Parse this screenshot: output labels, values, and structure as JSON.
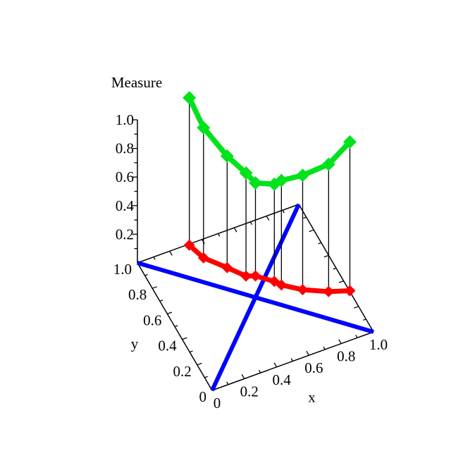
{
  "figure": {
    "background": "#ffffff",
    "description": "3D line plot of a dependence measure evaluated at points along the anti-diagonal of the unit square, with upper (green) and lower (red) measure curves joined by vertical drop lines, and blue diagonal reference lines on the base plane"
  },
  "chart_data": {
    "type": "line",
    "subtype": "3d-line-plot",
    "title": "",
    "z_axis": {
      "label": "Measure",
      "tick_labels": [
        "0.2",
        "0.4",
        "0.6",
        "0.8",
        "1.0"
      ],
      "tick_values": [
        0.2,
        0.4,
        0.6,
        0.8,
        1.0
      ],
      "range_shown": [
        0,
        1
      ],
      "minor_tick_step": 0.1
    },
    "x_axis": {
      "label": "x",
      "tick_labels": [
        "0",
        "0.2",
        "0.4",
        "0.6",
        "0.8",
        "1.0"
      ],
      "tick_values": [
        0,
        0.2,
        0.4,
        0.6,
        0.8,
        1.0
      ],
      "range": [
        0,
        1
      ],
      "minor_tick_step": 0.1
    },
    "y_axis": {
      "label": "y",
      "tick_labels": [
        "0",
        "0.2",
        "0.4",
        "0.6",
        "0.8",
        "1.0"
      ],
      "tick_values": [
        0,
        0.2,
        0.4,
        0.6,
        0.8,
        1.0
      ],
      "range": [
        0,
        1
      ],
      "minor_tick_step": 0.1
    },
    "grid": false,
    "legend": "none",
    "colors": {
      "series_upper": "#00E21C",
      "series_lower": "#FF0000",
      "reference_lines": "#0000FF",
      "axes": "#000000",
      "drop_lines": "#000000"
    },
    "series": [
      {
        "name": "upper-measure-curve",
        "color_key": "series_upper",
        "marker": "diamond",
        "points": [
          {
            "x": 0.22,
            "y": 0.78,
            "z": 1.26
          },
          {
            "x": 0.28,
            "y": 0.72,
            "z": 1.08
          },
          {
            "x": 0.38,
            "y": 0.62,
            "z": 0.93
          },
          {
            "x": 0.46,
            "y": 0.54,
            "z": 0.85
          },
          {
            "x": 0.5,
            "y": 0.5,
            "z": 0.8
          },
          {
            "x": 0.58,
            "y": 0.42,
            "z": 0.83
          },
          {
            "x": 0.61,
            "y": 0.39,
            "z": 0.87
          },
          {
            "x": 0.7,
            "y": 0.3,
            "z": 0.95
          },
          {
            "x": 0.81,
            "y": 0.19,
            "z": 1.08
          },
          {
            "x": 0.9,
            "y": 0.1,
            "z": 1.28
          }
        ]
      },
      {
        "name": "lower-measure-curve",
        "color_key": "series_lower",
        "marker": "diamond",
        "points": [
          {
            "x": 0.22,
            "y": 0.78,
            "z": 0.23
          },
          {
            "x": 0.28,
            "y": 0.72,
            "z": 0.17
          },
          {
            "x": 0.38,
            "y": 0.62,
            "z": 0.15
          },
          {
            "x": 0.46,
            "y": 0.54,
            "z": 0.13
          },
          {
            "x": 0.5,
            "y": 0.5,
            "z": 0.15
          },
          {
            "x": 0.58,
            "y": 0.42,
            "z": 0.15
          },
          {
            "x": 0.61,
            "y": 0.39,
            "z": 0.14
          },
          {
            "x": 0.7,
            "y": 0.3,
            "z": 0.15
          },
          {
            "x": 0.81,
            "y": 0.19,
            "z": 0.19
          },
          {
            "x": 0.9,
            "y": 0.1,
            "z": 0.24
          }
        ]
      }
    ],
    "drop_lines": {
      "enabled": true,
      "between": [
        "upper-measure-curve",
        "lower-measure-curve"
      ]
    },
    "reference_lines": [
      {
        "name": "base-diagonal-00-11",
        "from": [
          0,
          0,
          0
        ],
        "to": [
          1,
          1,
          0
        ]
      },
      {
        "name": "base-diagonal-01-10",
        "from": [
          0,
          1,
          0
        ],
        "to": [
          1,
          0,
          0
        ]
      }
    ]
  }
}
